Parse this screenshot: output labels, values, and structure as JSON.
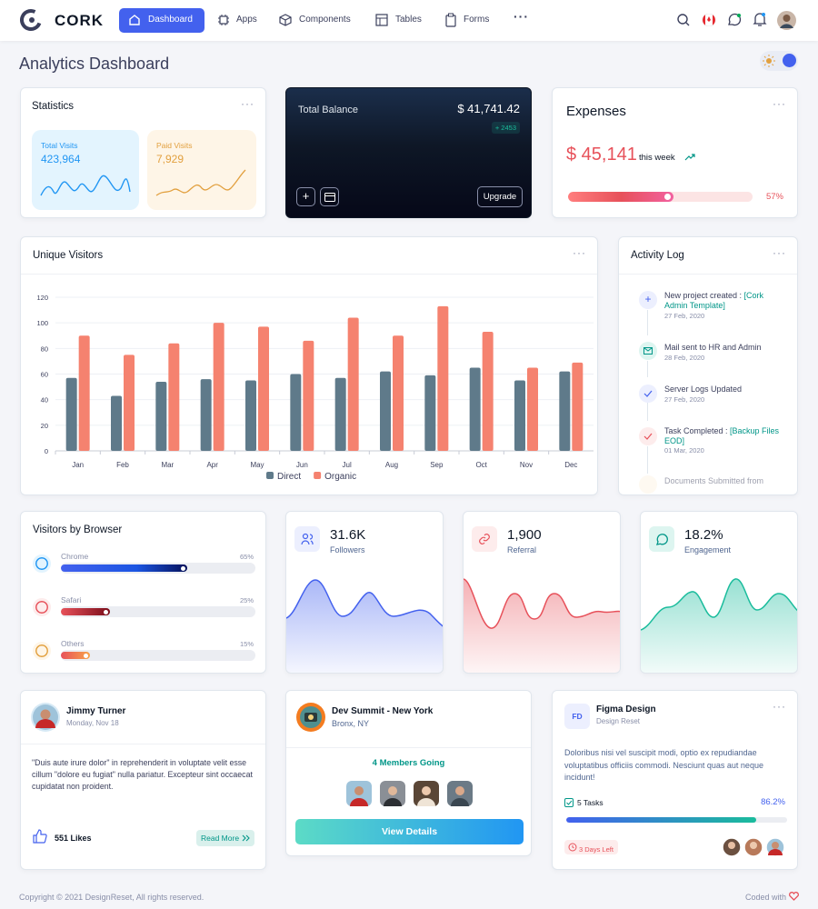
{
  "nav": {
    "brand": "CORK",
    "items": [
      "Dashboard",
      "Apps",
      "Components",
      "Tables",
      "Forms"
    ]
  },
  "header": {
    "title": "Analytics Dashboard"
  },
  "statistics": {
    "title": "Statistics",
    "total_visits": {
      "label": "Total Visits",
      "value": "423,964"
    },
    "paid_visits": {
      "label": "Paid Visits",
      "value": "7,929"
    }
  },
  "balance": {
    "label": "Total Balance",
    "amount": "$ 41,741.42",
    "change": "+ 2453",
    "button": "Upgrade"
  },
  "expenses": {
    "title": "Expenses",
    "amount": "$ 45,141",
    "period": "this week",
    "percent": 57,
    "percent_label": "57%"
  },
  "chart_data": {
    "type": "bar",
    "title": "Unique Visitors",
    "categories": [
      "Jan",
      "Feb",
      "Mar",
      "Apr",
      "May",
      "Jun",
      "Jul",
      "Aug",
      "Sep",
      "Oct",
      "Nov",
      "Dec"
    ],
    "series": [
      {
        "name": "Direct",
        "color": "#5f7a8a",
        "values": [
          57,
          43,
          54,
          56,
          55,
          60,
          57,
          62,
          59,
          65,
          55,
          62
        ]
      },
      {
        "name": "Organic",
        "color": "#f5826f",
        "values": [
          90,
          75,
          84,
          100,
          97,
          86,
          104,
          90,
          113,
          93,
          65,
          69
        ]
      }
    ],
    "ylim": [
      0,
      120
    ],
    "yticks": [
      0,
      20,
      40,
      60,
      80,
      100,
      120
    ],
    "grid": true,
    "legend": "bottom"
  },
  "activity_log": {
    "title": "Activity Log",
    "items": [
      {
        "text": "New project created : ",
        "link": "[Cork Admin Template]",
        "date": "27 Feb, 2020"
      },
      {
        "text": "Mail sent to HR and Admin",
        "date": "28 Feb, 2020"
      },
      {
        "text": "Server Logs Updated",
        "date": "27 Feb, 2020"
      },
      {
        "text": "Task Completed : ",
        "link": "[Backup Files EOD]",
        "date": "01 Mar, 2020"
      },
      {
        "text": "Documents Submitted from"
      }
    ]
  },
  "browsers": {
    "title": "Visitors by Browser",
    "items": [
      {
        "name": "Chrome",
        "percent": 65,
        "percent_label": "65%"
      },
      {
        "name": "Safari",
        "percent": 25,
        "percent_label": "25%"
      },
      {
        "name": "Others",
        "percent": 15,
        "percent_label": "15%"
      }
    ]
  },
  "summary": [
    {
      "value": "31.6K",
      "label": "Followers"
    },
    {
      "value": "1,900",
      "label": "Referral"
    },
    {
      "value": "18.2%",
      "label": "Engagement"
    }
  ],
  "post": {
    "name": "Jimmy Turner",
    "date": "Monday, Nov 18",
    "text": "\"Duis aute irure dolor\" in reprehenderit in voluptate velit esse cillum \"dolore eu fugiat\" nulla pariatur. Excepteur sint occaecat cupidatat non proident.",
    "likes": "551 Likes",
    "button": "Read More"
  },
  "event": {
    "title": "Dev Summit - New York",
    "location": "Bronx, NY",
    "going": "4 Members Going",
    "button": "View Details"
  },
  "project": {
    "initials": "FD",
    "title": "Figma Design",
    "subtitle": "Design Reset",
    "text": "Doloribus nisi vel suscipit modi, optio ex repudiandae voluptatibus officiis commodi. Nesciunt quas aut neque incidunt!",
    "tasks": "5 Tasks",
    "progress": 86.2,
    "progress_label": "86.2%",
    "deadline": "3 Days Left"
  },
  "footer": {
    "copyright": "Copyright © 2021 DesignReset, All rights reserved.",
    "credit": "Coded with"
  }
}
